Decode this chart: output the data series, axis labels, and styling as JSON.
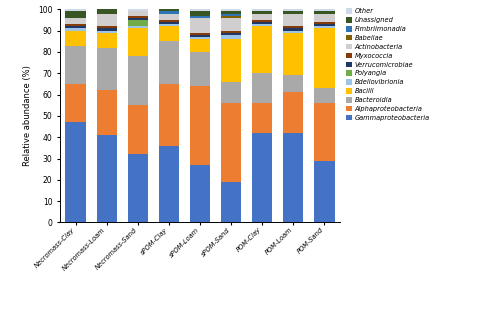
{
  "categories": [
    "Necromass-Clay",
    "Necromass-Loam",
    "Necromass-Sand",
    "sPOM-Clay",
    "sPOM-Loam",
    "sPOM-Sand",
    "POM-Clay",
    "POM-Loam",
    "POM-Sand"
  ],
  "series": {
    "Gammaproteobacteria": [
      47,
      41,
      32,
      36,
      27,
      19,
      42,
      42,
      29
    ],
    "Alphaproteobacteria": [
      18,
      21,
      23,
      29,
      37,
      37,
      14,
      19,
      27
    ],
    "Bacteroidia": [
      18,
      20,
      23,
      20,
      16,
      10,
      14,
      8,
      7
    ],
    "Bacilli": [
      7,
      7,
      13,
      7,
      6,
      20,
      22,
      20,
      28
    ],
    "Bdellovibrionia": [
      1,
      1,
      1,
      1,
      1,
      2,
      1,
      1,
      1
    ],
    "Polyangia": [
      0,
      0,
      3,
      0,
      0,
      0,
      0,
      0,
      0
    ],
    "Verrucomicrobiae": [
      1,
      1,
      1,
      1,
      1,
      1,
      1,
      1,
      1
    ],
    "Myxococcia": [
      1,
      1,
      1,
      1,
      1,
      1,
      1,
      1,
      1
    ],
    "Actinobacteria": [
      3,
      6,
      2,
      3,
      7,
      6,
      3,
      6,
      4
    ],
    "Babeliae": [
      0,
      0,
      0,
      0,
      0,
      1,
      0,
      0,
      0
    ],
    "Fimbriimonadia": [
      0,
      0,
      0,
      1,
      1,
      1,
      0,
      0,
      0
    ],
    "Unassigned": [
      3,
      2,
      0,
      1,
      2,
      1,
      1,
      1,
      1
    ],
    "Other": [
      1,
      0,
      1,
      0,
      1,
      1,
      1,
      1,
      1
    ]
  },
  "colors": {
    "Gammaproteobacteria": "#4472C4",
    "Alphaproteobacteria": "#ED7D31",
    "Bacteroidia": "#A9A9A9",
    "Bacilli": "#FFC000",
    "Bdellovibrionia": "#9DC3E6",
    "Polyangia": "#70AD47",
    "Verrucomicrobiae": "#1F3864",
    "Myxococcia": "#843C0C",
    "Actinobacteria": "#D0CECE",
    "Babeliae": "#806000",
    "Fimbriimonadia": "#2E75B6",
    "Unassigned": "#375623",
    "Other": "#CFD9E8"
  },
  "legend_order": [
    "Other",
    "Unassigned",
    "Fimbriimonadia",
    "Babeliae",
    "Actinobacteria",
    "Myxococcia",
    "Verrucomicrobiae",
    "Polyangia",
    "Bdellovibrionia",
    "Bacilli",
    "Bacteroidia",
    "Alphaproteobacteria",
    "Gammaproteobacteria"
  ],
  "ylabel": "Relative abundance (%)",
  "ylim": [
    0,
    100
  ],
  "figwidth": 5.0,
  "figheight": 3.09,
  "dpi": 100
}
